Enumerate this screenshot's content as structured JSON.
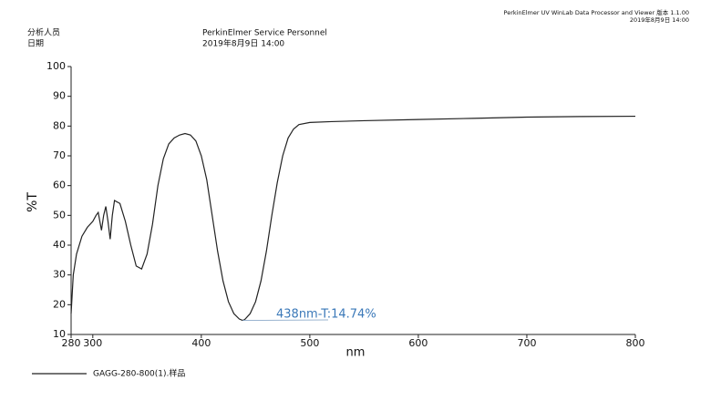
{
  "header": {
    "analyst_label": "分析人员",
    "date_label": "日期",
    "analyst": "PerkinElmer Service Personnel",
    "date": "2019年8月9日 14:00",
    "software": "PerkinElmer UV WinLab Data Processor and Viewer 版本 1.1.00",
    "print_date": "2019年8月9日 14:00"
  },
  "chart_data": {
    "type": "line",
    "xlabel": "nm",
    "ylabel": "%T",
    "xlim": [
      280,
      800
    ],
    "ylim": [
      10,
      100
    ],
    "xticks": [
      280,
      300,
      400,
      500,
      600,
      700,
      800
    ],
    "yticks": [
      10,
      20,
      30,
      40,
      50,
      60,
      70,
      80,
      90,
      100
    ],
    "annotation": "438nm-T:14.74%",
    "x": [
      280,
      282,
      285,
      290,
      295,
      300,
      303,
      305,
      307,
      308,
      310,
      312,
      314,
      316,
      318,
      320,
      325,
      330,
      335,
      340,
      345,
      350,
      355,
      360,
      365,
      370,
      375,
      380,
      385,
      390,
      395,
      400,
      405,
      410,
      415,
      420,
      425,
      430,
      435,
      438,
      440,
      445,
      450,
      455,
      460,
      465,
      470,
      475,
      480,
      485,
      490,
      500,
      520,
      550,
      600,
      650,
      700,
      750,
      800
    ],
    "series": [
      {
        "name": "GAGG-280-800(1).样品",
        "color": "#222222",
        "values": [
          17,
          30,
          37,
          43,
          46,
          48,
          50,
          51,
          47,
          45,
          50,
          53,
          48,
          42,
          50,
          55,
          54,
          48,
          40,
          33,
          32,
          37,
          47,
          60,
          69,
          74,
          76,
          77,
          77.5,
          77,
          75,
          70,
          62,
          50,
          38,
          28,
          21,
          17,
          15.2,
          14.74,
          15,
          17,
          21,
          28,
          38,
          50,
          61,
          70,
          76,
          79,
          80.5,
          81.2,
          81.5,
          81.8,
          82.2,
          82.6,
          83,
          83.2,
          83.3
        ]
      }
    ]
  }
}
